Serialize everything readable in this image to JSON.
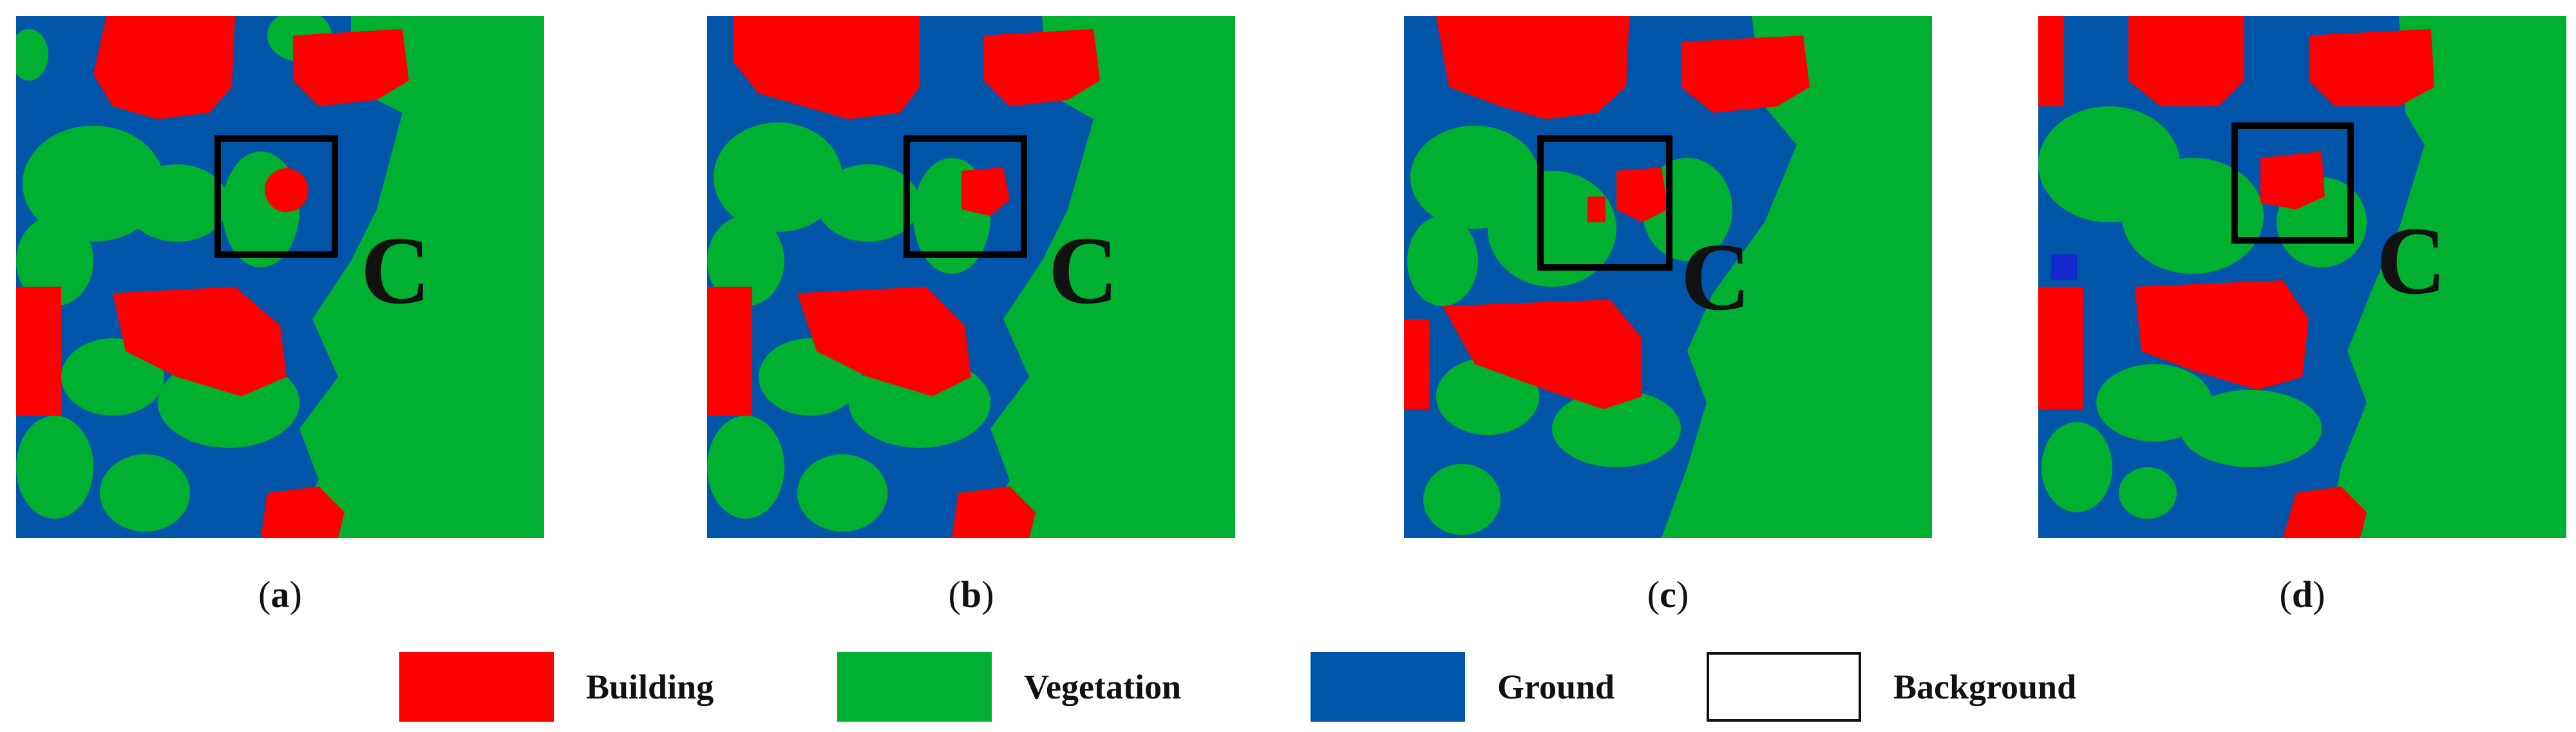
{
  "panels": [
    {
      "caption_open": "(",
      "caption_letter": "a",
      "caption_close": ")",
      "marker": "C"
    },
    {
      "caption_open": "(",
      "caption_letter": "b",
      "caption_close": ")",
      "marker": "C"
    },
    {
      "caption_open": "(",
      "caption_letter": "c",
      "caption_close": ")",
      "marker": "C"
    },
    {
      "caption_open": "(",
      "caption_letter": "d",
      "caption_close": ")",
      "marker": "C"
    }
  ],
  "legend": [
    {
      "label": "Building",
      "color": "#ff0000"
    },
    {
      "label": "Vegetation",
      "color": "#00b030"
    },
    {
      "label": "Ground",
      "color": "#0055a8"
    },
    {
      "label": "Background",
      "color": "#ffffff"
    }
  ],
  "colors": {
    "building": "#ff0000",
    "vegetation": "#00b030",
    "ground": "#0055a8",
    "background": "#ffffff",
    "highlight_box": "#000000"
  }
}
